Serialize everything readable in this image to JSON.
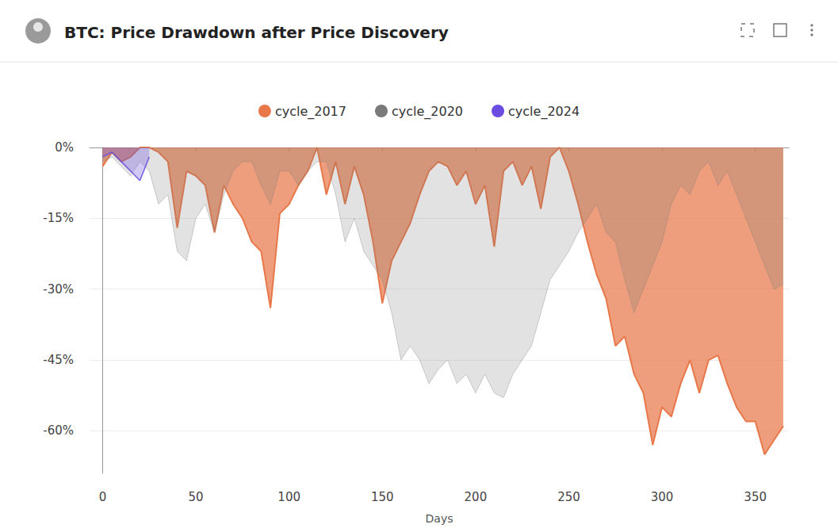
{
  "chart_data": {
    "type": "line",
    "title": "BTC: Price Drawdown after Price Discovery",
    "x_label": "Days",
    "x": [
      0,
      5,
      10,
      15,
      20,
      25,
      30,
      35,
      40,
      45,
      50,
      55,
      60,
      65,
      70,
      75,
      80,
      85,
      90,
      95,
      100,
      105,
      110,
      115,
      120,
      125,
      130,
      135,
      140,
      145,
      150,
      155,
      160,
      165,
      170,
      175,
      180,
      185,
      190,
      195,
      200,
      205,
      210,
      215,
      220,
      225,
      230,
      235,
      240,
      245,
      250,
      255,
      260,
      265,
      270,
      275,
      280,
      285,
      290,
      295,
      300,
      305,
      310,
      315,
      320,
      325,
      330,
      335,
      340,
      345,
      350,
      355,
      360,
      365
    ],
    "series": [
      {
        "name": "cycle_2017",
        "color": "#e8784a",
        "values": [
          -4,
          -1,
          -3,
          -2,
          0,
          0,
          -1,
          -3,
          -17,
          -5,
          -6,
          -8,
          -18,
          -8,
          -12,
          -15,
          -20,
          -22,
          -34,
          -14,
          -12,
          -8,
          -5,
          0,
          -10,
          -3,
          -12,
          -4,
          -10,
          -20,
          -33,
          -24,
          -20,
          -16,
          -10,
          -5,
          -3,
          -4,
          -8,
          -5,
          -12,
          -8,
          -21,
          -5,
          -3,
          -8,
          -4,
          -13,
          -2,
          0,
          -5,
          -12,
          -20,
          -27,
          -32,
          -42,
          -40,
          -48,
          -52,
          -63,
          -55,
          -57,
          -50,
          -45,
          -52,
          -45,
          -44,
          -50,
          -55,
          -58,
          -58,
          -65,
          -62,
          -59
        ]
      },
      {
        "name": "cycle_2020",
        "color": "#7a7a7a",
        "values": [
          -3,
          -2,
          -4,
          -6,
          -3,
          -5,
          -12,
          -10,
          -22,
          -24,
          -15,
          -12,
          -18,
          -10,
          -5,
          -3,
          -3,
          -8,
          -12,
          -5,
          -5,
          -8,
          -5,
          -3,
          -3,
          -10,
          -20,
          -15,
          -22,
          -25,
          -28,
          -35,
          -45,
          -42,
          -45,
          -50,
          -47,
          -45,
          -50,
          -48,
          -52,
          -48,
          -52,
          -53,
          -48,
          -45,
          -42,
          -35,
          -28,
          -25,
          -22,
          -18,
          -15,
          -12,
          -18,
          -20,
          -28,
          -35,
          -30,
          -25,
          -20,
          -12,
          -8,
          -10,
          -5,
          -3,
          -8,
          -5,
          -10,
          -15,
          -20,
          -25,
          -30,
          -29
        ]
      },
      {
        "name": "cycle_2024",
        "color": "#6a4ce0",
        "values": [
          -2,
          -1,
          -3,
          -5,
          -7,
          -2,
          null,
          null,
          null,
          null,
          null,
          null,
          null,
          null,
          null,
          null,
          null,
          null,
          null,
          null,
          null,
          null,
          null,
          null,
          null,
          null,
          null,
          null,
          null,
          null,
          null,
          null,
          null,
          null,
          null,
          null,
          null,
          null,
          null,
          null,
          null,
          null,
          null,
          null,
          null,
          null,
          null,
          null,
          null,
          null,
          null,
          null,
          null,
          null,
          null,
          null,
          null,
          null,
          null,
          null,
          null,
          null,
          null,
          null,
          null,
          null,
          null,
          null,
          null,
          null,
          null,
          null,
          null,
          null
        ]
      }
    ],
    "xlim": [
      -7,
      368
    ],
    "xticks": [
      0,
      50,
      100,
      150,
      200,
      250,
      300,
      350
    ],
    "ylim": [
      -69,
      0
    ],
    "yticks": [
      {
        "value": -60,
        "label": "-60%"
      },
      {
        "value": -45,
        "label": "-45%"
      },
      {
        "value": -30,
        "label": "-30%"
      },
      {
        "value": -15,
        "label": "-15%"
      },
      {
        "value": 0,
        "label": "0%"
      }
    ],
    "grid": true,
    "legend": "top"
  }
}
